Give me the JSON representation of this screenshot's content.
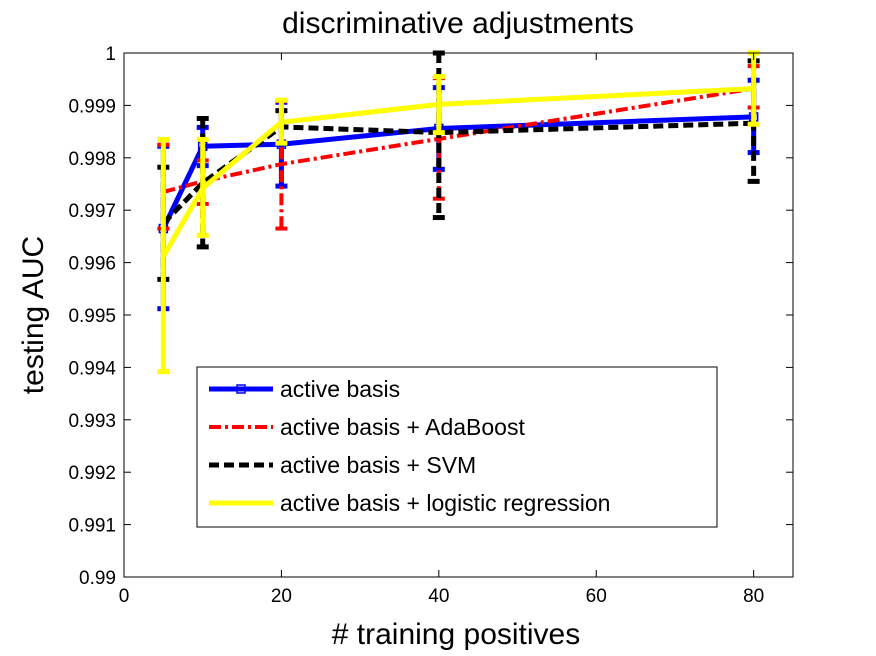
{
  "chart_data": {
    "type": "line",
    "title": "discriminative adjustments",
    "xlabel": "# training positives",
    "ylabel": "testing AUC",
    "xlim": [
      0,
      85
    ],
    "ylim": [
      0.99,
      1.0
    ],
    "xticks": [
      0,
      20,
      40,
      60,
      80
    ],
    "yticks": [
      0.99,
      0.991,
      0.992,
      0.993,
      0.994,
      0.995,
      0.996,
      0.997,
      0.998,
      0.999,
      1.0
    ],
    "xtick_labels": [
      "0",
      "20",
      "40",
      "60",
      "80"
    ],
    "ytick_labels": [
      "0.99",
      "0.991",
      "0.992",
      "0.993",
      "0.994",
      "0.995",
      "0.996",
      "0.997",
      "0.998",
      "0.999",
      "1"
    ],
    "grid": false,
    "legend_position": "lower-center",
    "x": [
      5,
      10,
      20,
      40,
      80
    ],
    "series": [
      {
        "name": "active basis",
        "color": "#0000ff",
        "line_style": "solid",
        "marker": "square",
        "values": [
          0.99665,
          0.99822,
          0.99826,
          0.99856,
          0.99878
        ],
        "error_low": [
          0.99512,
          0.99785,
          0.99746,
          0.99778,
          0.9981
        ],
        "error_high": [
          0.99822,
          0.99858,
          0.99906,
          0.99934,
          0.99948
        ]
      },
      {
        "name": "active basis + AdaBoost",
        "color": "#ff0000",
        "line_style": "dashdot",
        "marker": "none",
        "values": [
          0.99735,
          0.99755,
          0.99788,
          0.99836,
          0.99932
        ],
        "error_low": [
          0.99665,
          0.99712,
          0.99665,
          0.99722,
          0.99896
        ],
        "error_high": [
          0.99825,
          0.99795,
          0.99908,
          0.99952,
          0.99975
        ]
      },
      {
        "name": "active basis + SVM",
        "color": "#000000",
        "line_style": "dashed",
        "marker": "none",
        "values": [
          0.99675,
          0.99752,
          0.99859,
          0.99848,
          0.99866
        ],
        "error_low": [
          0.99568,
          0.9963,
          0.99828,
          0.99686,
          0.99755
        ],
        "error_high": [
          0.99782,
          0.99875,
          0.9989,
          1.0,
          0.99985
        ]
      },
      {
        "name": "active basis + logistic regression",
        "color": "#ffff00",
        "line_style": "solid",
        "marker": "none",
        "values": [
          0.99612,
          0.99742,
          0.99868,
          0.99902,
          0.99932
        ],
        "error_low": [
          0.99392,
          0.99652,
          0.99828,
          0.99848,
          0.99864
        ],
        "error_high": [
          0.99835,
          0.99835,
          0.9991,
          0.99955,
          1.0
        ]
      }
    ]
  }
}
